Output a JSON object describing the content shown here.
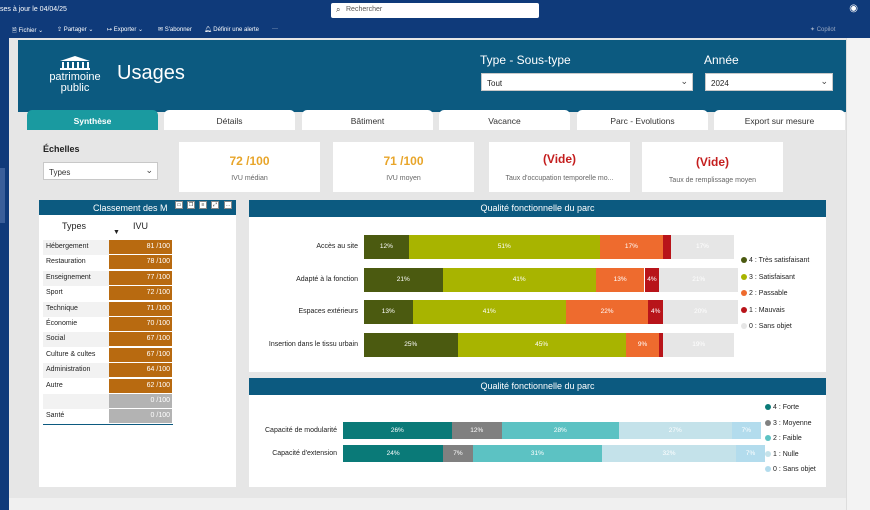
{
  "window": {
    "updated_text": "ses à jour le 04/04/25",
    "search_placeholder": "Rechercher"
  },
  "toolbar": {
    "fichier": "Fichier",
    "partager": "Partager",
    "exporter": "Exporter",
    "sabonner": "S'abonner",
    "alerte": "Définir une alerte",
    "more": "···",
    "copilot": "Copilot"
  },
  "header": {
    "logo_line1": "patrimoine",
    "logo_line2": "public",
    "title": "Usages",
    "filter_type_label": "Type - Sous-type",
    "filter_type_value": "Tout",
    "filter_year_label": "Année",
    "filter_year_value": "2024"
  },
  "tabs": [
    "Synthèse",
    "Détails",
    "Bâtiment",
    "Vacance",
    "Parc - Evolutions",
    "Export sur mesure"
  ],
  "echelles": {
    "label": "Échelles",
    "value": "Types"
  },
  "kpis": [
    {
      "value": "72 /100",
      "label": "IVU médian",
      "color": "#e8a52a"
    },
    {
      "value": "71 /100",
      "label": "IVU moyen",
      "color": "#e8a52a"
    },
    {
      "value": "(Vide)",
      "label": "Taux d'occupation temporelle mo...",
      "color": "#c41e1e"
    },
    {
      "value": "(Vide)",
      "label": "Taux de remplissage moyen",
      "color": "#c41e1e"
    }
  ],
  "classement": {
    "title": "Classement des M",
    "col_types": "Types",
    "col_ivu": "IVU",
    "rows": [
      {
        "type": "Hébergement",
        "ivu": "81 /100",
        "color": "#b86a10"
      },
      {
        "type": "Restauration",
        "ivu": "78 /100",
        "color": "#b86a10"
      },
      {
        "type": "Enseignement",
        "ivu": "77 /100",
        "color": "#b86a10"
      },
      {
        "type": "Sport",
        "ivu": "72 /100",
        "color": "#b86a10"
      },
      {
        "type": "Technique",
        "ivu": "71 /100",
        "color": "#b86a10"
      },
      {
        "type": "Économie",
        "ivu": "70 /100",
        "color": "#b86a10"
      },
      {
        "type": "Social",
        "ivu": "67 /100",
        "color": "#b86a10"
      },
      {
        "type": "Culture & cultes",
        "ivu": "67 /100",
        "color": "#b86a10"
      },
      {
        "type": "Administration",
        "ivu": "64 /100",
        "color": "#b86a10"
      },
      {
        "type": "Autre",
        "ivu": "62 /100",
        "color": "#b86a10"
      },
      {
        "type": "",
        "ivu": "0 /100",
        "color": "#b3b3b3"
      },
      {
        "type": "Santé",
        "ivu": "0 /100",
        "color": "#b3b3b3"
      }
    ]
  },
  "colors": {
    "q4": "#4b5a10",
    "q3": "#a8b400",
    "q2": "#ee6b2e",
    "q1": "#b8141a",
    "q0": "#e6e6e6",
    "c4": "#0a7a78",
    "c3": "#808080",
    "c2": "#5cc2c3",
    "c1": "#c4e2ea",
    "c0": "#b3dced"
  },
  "chart_data": [
    {
      "type": "bar",
      "stacked": true,
      "orientation": "horizontal",
      "title": "Qualité fonctionnelle du parc",
      "categories": [
        "Accès au site",
        "Adapté à la fonction",
        "Espaces extérieurs",
        "Insertion dans le tissu urbain"
      ],
      "series": [
        {
          "name": "4 : Très satisfaisant",
          "values": [
            12,
            21,
            13,
            25
          ]
        },
        {
          "name": "3 : Satisfaisant",
          "values": [
            51,
            41,
            41,
            45
          ]
        },
        {
          "name": "2 : Passable",
          "values": [
            17,
            13,
            22,
            9
          ]
        },
        {
          "name": "1 : Mauvais",
          "values": [
            2,
            4,
            4,
            1
          ]
        },
        {
          "name": "0 : Sans objet",
          "values": [
            17,
            21,
            20,
            19
          ]
        }
      ],
      "labels": [
        [
          "12%",
          "51%",
          "17%",
          "",
          "17%"
        ],
        [
          "21%",
          "41%",
          "13%",
          "4%",
          "21%"
        ],
        [
          "13%",
          "41%",
          "22%",
          "4%",
          "20%"
        ],
        [
          "25%",
          "45%",
          "9%",
          "",
          "19%"
        ]
      ]
    },
    {
      "type": "bar",
      "stacked": true,
      "orientation": "horizontal",
      "title": "Qualité fonctionnelle du parc",
      "categories": [
        "Capacité de modularité",
        "Capacité d'extension"
      ],
      "series": [
        {
          "name": "4 : Forte",
          "values": [
            26,
            24
          ]
        },
        {
          "name": "3 : Moyenne",
          "values": [
            12,
            7
          ]
        },
        {
          "name": "2 : Faible",
          "values": [
            28,
            31
          ]
        },
        {
          "name": "1 : Nulle",
          "values": [
            27,
            32
          ]
        },
        {
          "name": "0 : Sans objet",
          "values": [
            7,
            7
          ]
        }
      ],
      "labels": [
        [
          "26%",
          "12%",
          "28%",
          "27%",
          "7%"
        ],
        [
          "24%",
          "7%",
          "31%",
          "32%",
          "7%"
        ]
      ]
    }
  ]
}
